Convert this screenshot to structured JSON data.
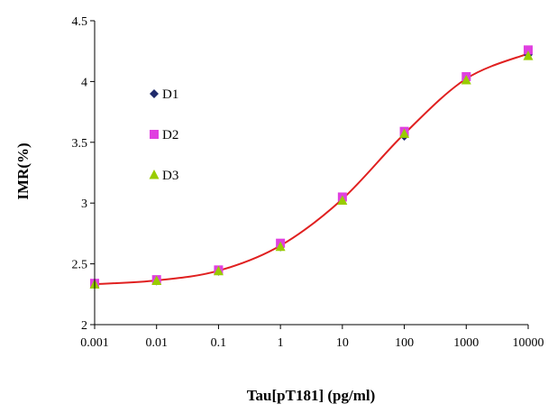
{
  "chart_data": {
    "type": "scatter",
    "xlabel": "Tau[pT181] (pg/ml)",
    "ylabel": "IMR(%)",
    "x_scale": "log",
    "xlim": [
      0.001,
      10000
    ],
    "ylim": [
      2,
      4.5
    ],
    "x_ticks": [
      "0.001",
      "0.01",
      "0.1",
      "1",
      "10",
      "100",
      "1000",
      "10000"
    ],
    "y_ticks": [
      "2",
      "2.5",
      "3",
      "3.5",
      "4",
      "4.5"
    ],
    "grid": false,
    "legend_position": "top-left, inside plot",
    "x": [
      0.001,
      0.01,
      0.1,
      1,
      10,
      100,
      1000,
      10000
    ],
    "series": [
      {
        "name": "D1",
        "marker": "diamond",
        "color": "#1f2a6b",
        "values": [
          2.33,
          2.36,
          2.44,
          2.64,
          3.03,
          3.55,
          4.02,
          4.22
        ]
      },
      {
        "name": "D2",
        "marker": "square",
        "color": "#e040e0",
        "values": [
          2.34,
          2.37,
          2.45,
          2.67,
          3.05,
          3.59,
          4.04,
          4.26
        ]
      },
      {
        "name": "D3",
        "marker": "triangle",
        "color": "#99cc00",
        "values": [
          2.33,
          2.36,
          2.44,
          2.64,
          3.02,
          3.57,
          4.01,
          4.21
        ]
      }
    ],
    "fit_curve": {
      "color": "#e02020"
    }
  }
}
